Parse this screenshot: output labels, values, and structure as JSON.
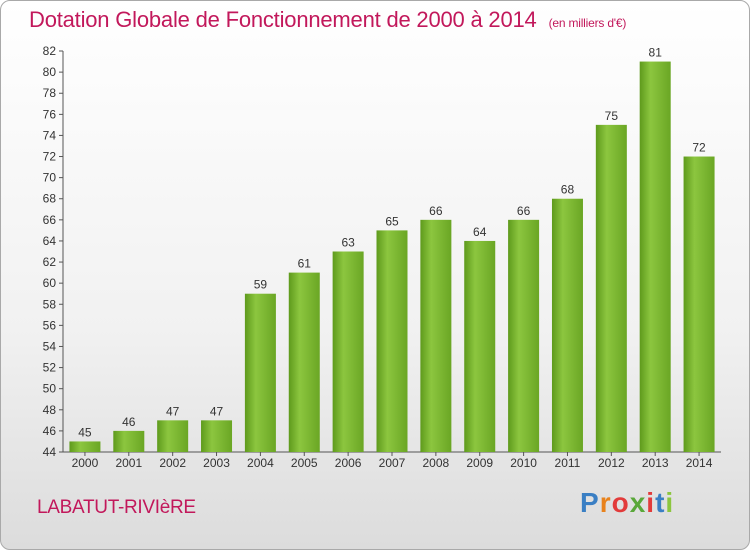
{
  "header": {
    "title": "Dotation Globale de Fonctionnement de 2000 à 2014",
    "subtitle": "(en milliers d'€)"
  },
  "footer": {
    "commune": "LABATUT-RIVIèRE",
    "brand_letters": [
      "P",
      "r",
      "o",
      "x",
      "i",
      "t",
      "i"
    ],
    "brand_colors": [
      "#3a7fc4",
      "#e8821c",
      "#e23b3b",
      "#5aa83a",
      "#e23b3b",
      "#3a7fc4",
      "#8cc63f"
    ]
  },
  "chart_data": {
    "type": "bar",
    "categories": [
      "2000",
      "2001",
      "2002",
      "2003",
      "2004",
      "2005",
      "2006",
      "2007",
      "2008",
      "2009",
      "2010",
      "2011",
      "2012",
      "2013",
      "2014"
    ],
    "values": [
      45,
      46,
      47,
      47,
      59,
      61,
      63,
      65,
      66,
      64,
      66,
      68,
      75,
      81,
      72
    ],
    "ylim": [
      44,
      82
    ],
    "yticks": [
      44,
      46,
      48,
      50,
      52,
      54,
      56,
      58,
      60,
      62,
      64,
      66,
      68,
      70,
      72,
      74,
      76,
      78,
      80,
      82
    ],
    "grid": false,
    "bar_color": "#7cb82f"
  }
}
